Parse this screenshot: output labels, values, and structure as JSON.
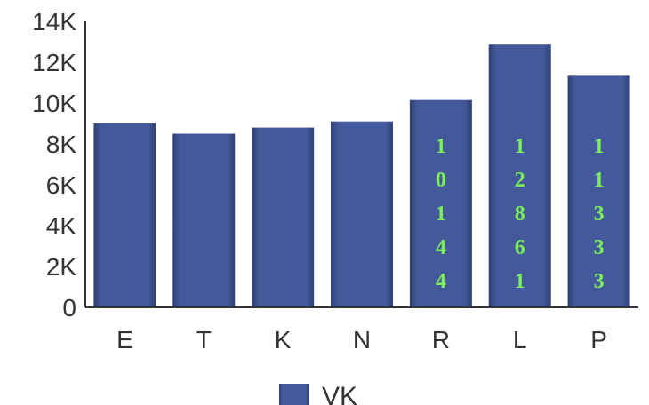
{
  "chart_data": {
    "type": "bar",
    "categories": [
      "E",
      "T",
      "K",
      "N",
      "R",
      "L",
      "P"
    ],
    "series": [
      {
        "name": "VK",
        "values": [
          9000,
          8500,
          8800,
          9100,
          10144,
          12861,
          11333
        ]
      }
    ],
    "data_labels": [
      null,
      null,
      null,
      null,
      "10144",
      "12861",
      "11333"
    ],
    "data_label_orientation": "vertical-stacked-digits",
    "yticks": [
      "0",
      "2K",
      "4K",
      "6K",
      "8K",
      "10K",
      "12K",
      "14K"
    ],
    "ylim": [
      0,
      14000
    ],
    "grid": false,
    "legend_position": "bottom",
    "colors": {
      "bar": "#44599a",
      "bar_dark": "#2f3f73",
      "data_label": "#7cf05a",
      "axis": "#333333"
    }
  }
}
